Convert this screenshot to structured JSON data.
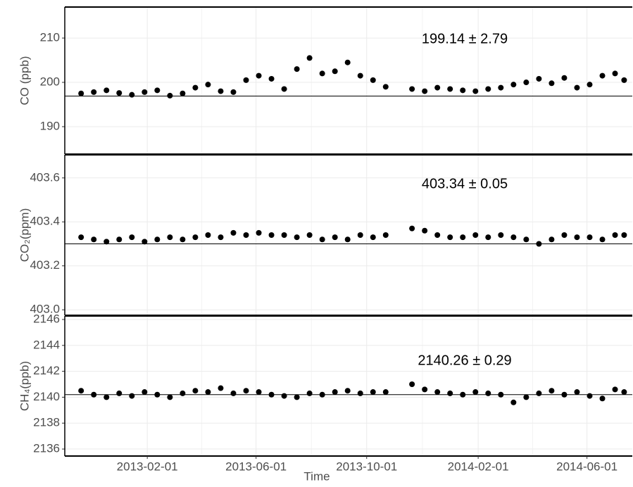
{
  "chart_data": [
    {
      "type": "scatter",
      "y_label": "CO (ppb)",
      "annotation": "199.14 ± 2.79",
      "color": "#000000",
      "hline": 196.9,
      "x": [
        "2012-11-20",
        "2012-12-04",
        "2012-12-18",
        "2013-01-01",
        "2013-01-15",
        "2013-01-29",
        "2013-02-12",
        "2013-02-26",
        "2013-03-12",
        "2013-03-26",
        "2013-04-09",
        "2013-04-23",
        "2013-05-07",
        "2013-05-21",
        "2013-06-04",
        "2013-06-18",
        "2013-07-02",
        "2013-07-16",
        "2013-07-30",
        "2013-08-13",
        "2013-08-27",
        "2013-09-10",
        "2013-09-24",
        "2013-10-08",
        "2013-10-22",
        "2013-11-20",
        "2013-12-04",
        "2013-12-18",
        "2014-01-01",
        "2014-01-15",
        "2014-01-29",
        "2014-02-12",
        "2014-02-26",
        "2014-03-12",
        "2014-03-26",
        "2014-04-09",
        "2014-04-23",
        "2014-05-07",
        "2014-05-21",
        "2014-06-04",
        "2014-06-18",
        "2014-07-02",
        "2014-07-12"
      ],
      "values": [
        197.5,
        197.8,
        198.2,
        197.6,
        197.2,
        197.8,
        198.2,
        197.0,
        197.5,
        198.8,
        199.5,
        198.0,
        197.8,
        200.5,
        201.5,
        200.8,
        198.5,
        203.0,
        205.5,
        202.0,
        202.5,
        204.5,
        201.5,
        200.5,
        199.0,
        198.5,
        198.0,
        198.8,
        198.5,
        198.2,
        198.0,
        198.5,
        198.8,
        199.5,
        200.0,
        200.8,
        199.8,
        201.0,
        198.8,
        199.5,
        201.5,
        202.0,
        200.5
      ],
      "ylim": [
        183.8,
        217
      ],
      "yticks": [
        190,
        200,
        210
      ]
    },
    {
      "type": "scatter",
      "y_label": "CO₂(ppm)",
      "annotation": "403.34 ± 0.05",
      "color": "#000000",
      "hline": 403.3,
      "x": [
        "2012-11-20",
        "2012-12-04",
        "2012-12-18",
        "2013-01-01",
        "2013-01-15",
        "2013-01-29",
        "2013-02-12",
        "2013-02-26",
        "2013-03-12",
        "2013-03-26",
        "2013-04-09",
        "2013-04-23",
        "2013-05-07",
        "2013-05-21",
        "2013-06-04",
        "2013-06-18",
        "2013-07-02",
        "2013-07-16",
        "2013-07-30",
        "2013-08-13",
        "2013-08-27",
        "2013-09-10",
        "2013-09-24",
        "2013-10-08",
        "2013-10-22",
        "2013-11-20",
        "2013-12-04",
        "2013-12-18",
        "2014-01-01",
        "2014-01-15",
        "2014-01-29",
        "2014-02-12",
        "2014-02-26",
        "2014-03-12",
        "2014-03-26",
        "2014-04-09",
        "2014-04-23",
        "2014-05-07",
        "2014-05-21",
        "2014-06-04",
        "2014-06-18",
        "2014-07-02",
        "2014-07-12"
      ],
      "values": [
        403.33,
        403.32,
        403.31,
        403.32,
        403.33,
        403.31,
        403.32,
        403.33,
        403.32,
        403.33,
        403.34,
        403.33,
        403.35,
        403.34,
        403.35,
        403.34,
        403.34,
        403.33,
        403.34,
        403.32,
        403.33,
        403.32,
        403.34,
        403.33,
        403.34,
        403.37,
        403.36,
        403.34,
        403.33,
        403.33,
        403.34,
        403.33,
        403.34,
        403.33,
        403.32,
        403.3,
        403.32,
        403.34,
        403.33,
        403.33,
        403.32,
        403.34,
        403.34
      ],
      "ylim": [
        402.975,
        403.705
      ],
      "yticks": [
        {
          "value": 403.0,
          "label": "403.0"
        },
        403.2,
        403.4,
        403.6
      ]
    },
    {
      "type": "scatter",
      "y_label": "CH₄(ppb)",
      "annotation": "2140.26 ± 0.29",
      "color": "#000000",
      "hline": 2140.2,
      "x": [
        "2012-11-20",
        "2012-12-04",
        "2012-12-18",
        "2013-01-01",
        "2013-01-15",
        "2013-01-29",
        "2013-02-12",
        "2013-02-26",
        "2013-03-12",
        "2013-03-26",
        "2013-04-09",
        "2013-04-23",
        "2013-05-07",
        "2013-05-21",
        "2013-06-04",
        "2013-06-18",
        "2013-07-02",
        "2013-07-16",
        "2013-07-30",
        "2013-08-13",
        "2013-08-27",
        "2013-09-10",
        "2013-09-24",
        "2013-10-08",
        "2013-10-22",
        "2013-11-20",
        "2013-12-04",
        "2013-12-18",
        "2014-01-01",
        "2014-01-15",
        "2014-01-29",
        "2014-02-12",
        "2014-02-26",
        "2014-03-12",
        "2014-03-26",
        "2014-04-09",
        "2014-04-23",
        "2014-05-07",
        "2014-05-21",
        "2014-06-04",
        "2014-06-18",
        "2014-07-02",
        "2014-07-12"
      ],
      "values": [
        2140.5,
        2140.2,
        2140.0,
        2140.3,
        2140.1,
        2140.4,
        2140.2,
        2140.0,
        2140.3,
        2140.5,
        2140.4,
        2140.7,
        2140.3,
        2140.5,
        2140.4,
        2140.2,
        2140.1,
        2140.0,
        2140.3,
        2140.2,
        2140.4,
        2140.5,
        2140.3,
        2140.4,
        2140.4,
        2141.0,
        2140.6,
        2140.4,
        2140.3,
        2140.2,
        2140.4,
        2140.3,
        2140.2,
        2139.6,
        2140.0,
        2140.3,
        2140.5,
        2140.2,
        2140.4,
        2140.1,
        2139.9,
        2140.6,
        2140.4
      ],
      "ylim": [
        2135.46,
        2146.27
      ],
      "yticks": [
        2136,
        2138,
        2140,
        2142,
        2144,
        2146
      ],
      "x_label": "Time",
      "xlim": [
        "2012-11-02",
        "2014-07-21"
      ],
      "xticks": [
        "2013-02-01",
        "2013-06-01",
        "2013-10-01",
        "2014-02-01",
        "2014-06-01"
      ]
    }
  ]
}
